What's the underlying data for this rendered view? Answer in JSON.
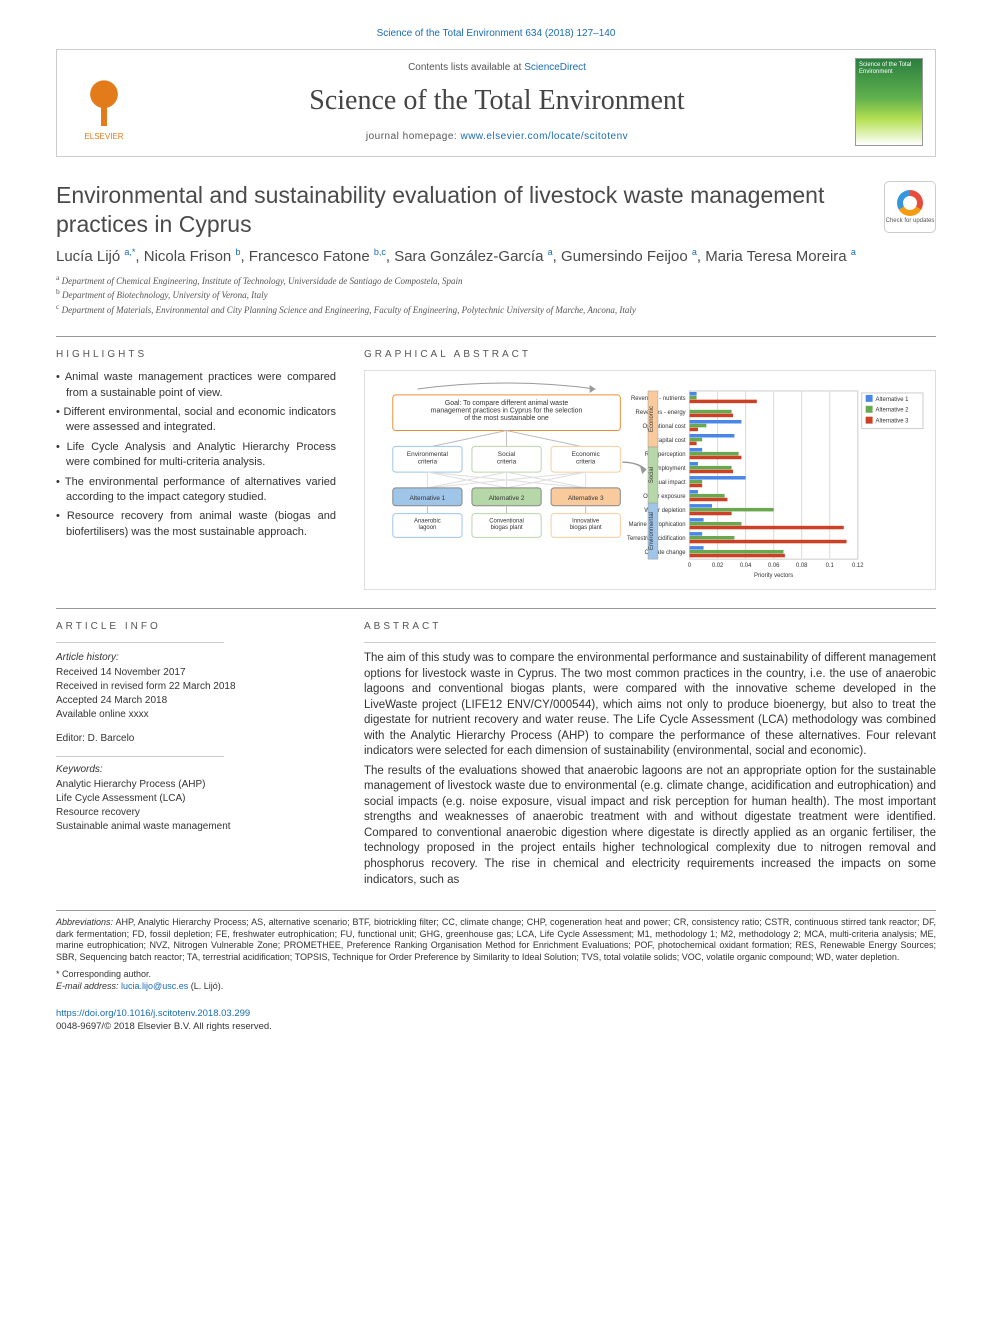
{
  "header": {
    "top_link": "Science of the Total Environment 634 (2018) 127–140",
    "publisher_name": "ELSEVIER",
    "contents_text": "Contents lists available at ",
    "contents_link": "ScienceDirect",
    "journal_title": "Science of the Total Environment",
    "homepage_label": "journal homepage: ",
    "homepage_url": "www.elsevier.com/locate/scitotenv",
    "cover_title": "Science of the Total Environment",
    "check_updates_label": "Check for updates"
  },
  "article": {
    "title": "Environmental and sustainability evaluation of livestock waste management practices in Cyprus",
    "authors_html": "Lucía Lijó <sup>a,*</sup>, Nicola Frison <sup>b</sup>, Francesco Fatone <sup>b,c</sup>, Sara González-García <sup>a</sup>, Gumersindo Feijoo <sup>a</sup>, Maria Teresa Moreira <sup>a</sup>",
    "affiliations": [
      "a Department of Chemical Engineering, Institute of Technology, Universidade de Santiago de Compostela, Spain",
      "b Department of Biotechnology, University of Verona, Italy",
      "c Department of Materials, Environmental and City Planning Science and Engineering, Faculty of Engineering, Polytechnic University of Marche, Ancona, Italy"
    ]
  },
  "highlights": {
    "heading": "HIGHLIGHTS",
    "items": [
      "Animal waste management practices were compared from a sustainable point of view.",
      "Different environmental, social and economic indicators were assessed and integrated.",
      "Life Cycle Analysis and Analytic Hierarchy Process were combined for multi-criteria analysis.",
      "The environmental performance of alternatives varied according to the impact category studied.",
      "Resource recovery from animal waste (biogas and biofertilisers) was the most sustainable approach."
    ]
  },
  "graphical_abstract": {
    "heading": "GRAPHICAL ABSTRACT",
    "flowchart": {
      "goal": "Goal: To compare different animal waste management practices in Cyprus for the selection of the most sustainable one",
      "criteria": [
        {
          "label": "Environmental criteria",
          "color": "#9fc5e8"
        },
        {
          "label": "Social criteria",
          "color": "#b6d7a8"
        },
        {
          "label": "Economic criteria",
          "color": "#f9cb9c"
        }
      ],
      "alternatives": [
        {
          "top": "Alternative 1",
          "bottom": "Anaerobic lagoon",
          "color": "#9fc5e8"
        },
        {
          "top": "Alternative 2",
          "bottom": "Conventional biogas plant",
          "color": "#b6d7a8"
        },
        {
          "top": "Alternative 3",
          "bottom": "Innovative biogas plant",
          "color": "#f9cb9c"
        }
      ]
    },
    "chart": {
      "type": "grouped-horizontal-bar",
      "xlim": [
        0,
        0.12
      ],
      "xtick_step": 0.02,
      "xlabel": "Priority vectors",
      "legend": [
        "Alternative 1",
        "Alternative 2",
        "Alternative 3"
      ],
      "series_colors": [
        "#4a86e8",
        "#6aa84f",
        "#cc4125"
      ],
      "background_color": "#ffffff",
      "grid_color": "#d9d9d9",
      "row_group_labels": [
        "Economic",
        "Social",
        "Environmental"
      ],
      "row_group_colors": [
        "#f9cb9c",
        "#b6d7a8",
        "#9fc5e8"
      ],
      "rows": [
        {
          "group": "Economic",
          "label": "Revenues - nutrients",
          "values": [
            0.005,
            0.005,
            0.048
          ]
        },
        {
          "group": "Economic",
          "label": "Revenues - energy",
          "values": [
            0.0,
            0.03,
            0.031
          ]
        },
        {
          "group": "Economic",
          "label": "Operational cost",
          "values": [
            0.037,
            0.012,
            0.006
          ]
        },
        {
          "group": "Economic",
          "label": "Capital cost",
          "values": [
            0.032,
            0.009,
            0.005
          ]
        },
        {
          "group": "Social",
          "label": "Risk perception",
          "values": [
            0.009,
            0.035,
            0.037
          ]
        },
        {
          "group": "Social",
          "label": "Employment",
          "values": [
            0.006,
            0.03,
            0.031
          ]
        },
        {
          "group": "Social",
          "label": "Visual impact",
          "values": [
            0.04,
            0.009,
            0.009
          ]
        },
        {
          "group": "Social",
          "label": "Odour exposure",
          "values": [
            0.006,
            0.025,
            0.027
          ]
        },
        {
          "group": "Environmental",
          "label": "Water depletion",
          "values": [
            0.016,
            0.06,
            0.03
          ]
        },
        {
          "group": "Environmental",
          "label": "Marine eutrophication",
          "values": [
            0.01,
            0.037,
            0.11
          ]
        },
        {
          "group": "Environmental",
          "label": "Terrestrial acidification",
          "values": [
            0.009,
            0.032,
            0.112
          ]
        },
        {
          "group": "Environmental",
          "label": "Climate change",
          "values": [
            0.01,
            0.067,
            0.068
          ]
        }
      ]
    }
  },
  "article_info": {
    "heading": "ARTICLE INFO",
    "history_heading": "Article history:",
    "history": [
      "Received 14 November 2017",
      "Received in revised form 22 March 2018",
      "Accepted 24 March 2018",
      "Available online xxxx"
    ],
    "editor_label": "Editor: D. Barcelo",
    "keywords_heading": "Keywords:",
    "keywords": [
      "Analytic Hierarchy Process (AHP)",
      "Life Cycle Assessment (LCA)",
      "Resource recovery",
      "Sustainable animal waste management"
    ]
  },
  "abstract": {
    "heading": "ABSTRACT",
    "paragraphs": [
      "The aim of this study was to compare the environmental performance and sustainability of different management options for livestock waste in Cyprus. The two most common practices in the country, i.e. the use of anaerobic lagoons and conventional biogas plants, were compared with the innovative scheme developed in the LiveWaste project (LIFE12 ENV/CY/000544), which aims not only to produce bioenergy, but also to treat the digestate for nutrient recovery and water reuse. The Life Cycle Assessment (LCA) methodology was combined with the Analytic Hierarchy Process (AHP) to compare the performance of these alternatives. Four relevant indicators were selected for each dimension of sustainability (environmental, social and economic).",
      "The results of the evaluations showed that anaerobic lagoons are not an appropriate option for the sustainable management of livestock waste due to environmental (e.g. climate change, acidification and eutrophication) and social impacts (e.g. noise exposure, visual impact and risk perception for human health). The most important strengths and weaknesses of anaerobic treatment with and without digestate treatment were identified. Compared to conventional anaerobic digestion where digestate is directly applied as an organic fertiliser, the technology proposed in the project entails higher technological complexity due to nitrogen removal and phosphorus recovery. The rise in chemical and electricity requirements increased the impacts on some indicators, such as"
    ]
  },
  "footnotes": {
    "abbreviations_label": "Abbreviations:",
    "abbreviations_text": "AHP, Analytic Hierarchy Process; AS, alternative scenario; BTF, biotrickling filter; CC, climate change; CHP, cogeneration heat and power; CR, consistency ratio; CSTR, continuous stirred tank reactor; DF, dark fermentation; FD, fossil depletion; FE, freshwater eutrophication; FU, functional unit; GHG, greenhouse gas; LCA, Life Cycle Assessment; M1, methodology 1; M2, methodology 2; MCA, multi-criteria analysis; ME, marine eutrophication; NVZ, Nitrogen Vulnerable Zone; PROMETHEE, Preference Ranking Organisation Method for Enrichment Evaluations; POF, photochemical oxidant formation; RES, Renewable Energy Sources; SBR, Sequencing batch reactor; TA, terrestrial acidification; TOPSIS, Technique for Order Preference by Similarity to Ideal Solution; TVS, total volatile solids; VOC, volatile organic compound; WD, water depletion.",
    "corr_label": "* Corresponding author.",
    "email_label": "E-mail address:",
    "email": "lucia.lijo@usc.es",
    "email_name": "(L. Lijó)."
  },
  "footer": {
    "doi": "https://doi.org/10.1016/j.scitotenv.2018.03.299",
    "copyright": "0048-9697/© 2018 Elsevier B.V. All rights reserved."
  }
}
